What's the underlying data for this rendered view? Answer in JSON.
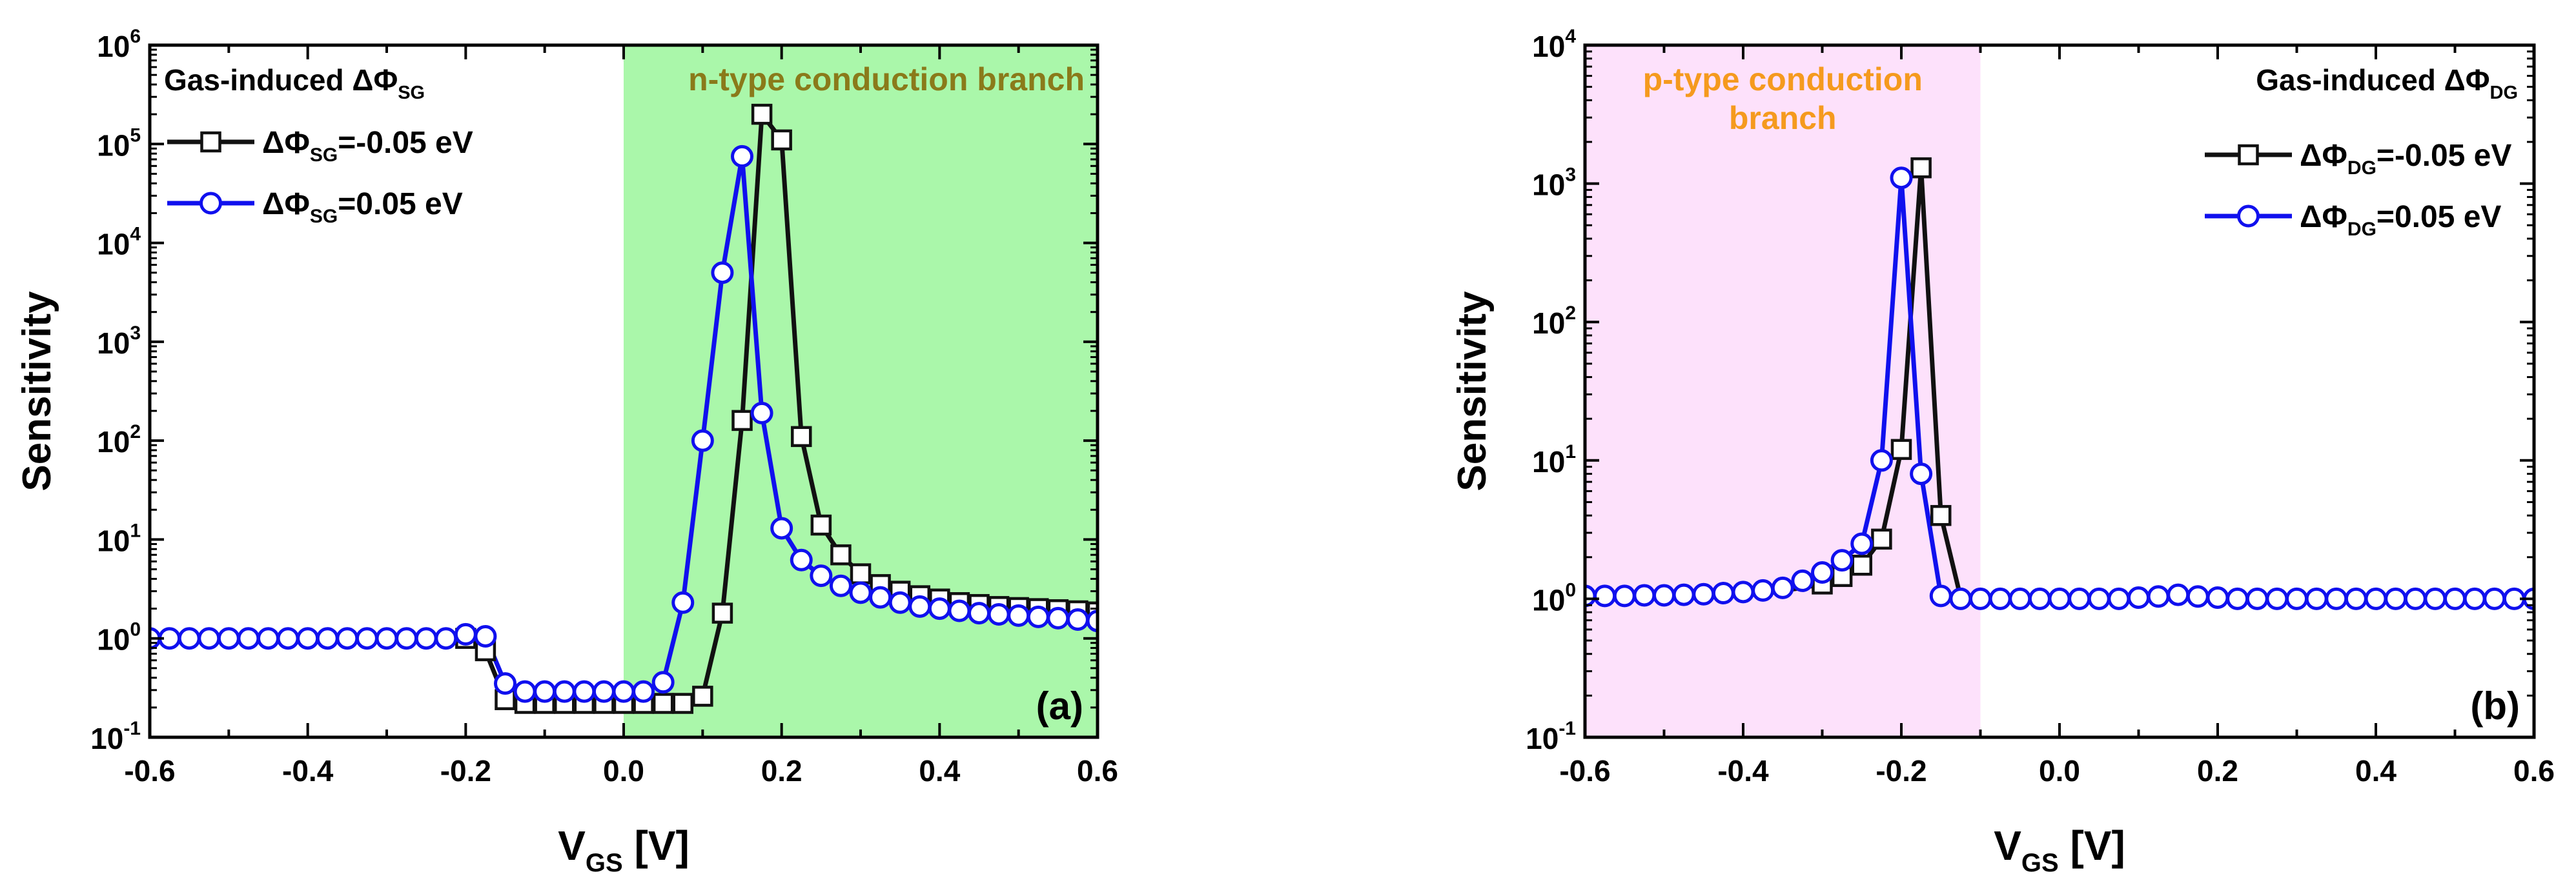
{
  "chart_data": [
    {
      "panel": "a",
      "type": "line",
      "yscale": "log",
      "xlabel": "V",
      "xlabel_sub": "GS",
      "xlabel_unit": "[V]",
      "ylabel": "Sensitivity",
      "xlim": [
        -0.6,
        0.6
      ],
      "xticks": [
        "-0.6",
        "-0.4",
        "-0.2",
        "0.0",
        "0.2",
        "0.4",
        "0.6"
      ],
      "ylim_exp": [
        -1,
        6
      ],
      "yticks": [
        {
          "base": "10",
          "exp": "-1"
        },
        {
          "base": "10",
          "exp": "0"
        },
        {
          "base": "10",
          "exp": "1"
        },
        {
          "base": "10",
          "exp": "2"
        },
        {
          "base": "10",
          "exp": "3"
        },
        {
          "base": "10",
          "exp": "4"
        },
        {
          "base": "10",
          "exp": "5"
        },
        {
          "base": "10",
          "exp": "6"
        }
      ],
      "region": {
        "x0": 0.0,
        "x1": 0.6,
        "color": "#aaf7aa",
        "label": "n-type conduction branch",
        "label_color": "#8a7a1a"
      },
      "panel_label": "(a)",
      "legend": {
        "title_main": "Gas-induced ΔΦ",
        "title_sub": "SG",
        "placement": "top-left"
      },
      "series": [
        {
          "name_main": "ΔΦ",
          "name_sub": "SG",
          "name_tail": "=-0.05 eV",
          "color": "#111111",
          "marker": "square",
          "x": [
            -0.6,
            -0.575,
            -0.55,
            -0.525,
            -0.5,
            -0.475,
            -0.45,
            -0.425,
            -0.4,
            -0.375,
            -0.35,
            -0.325,
            -0.3,
            -0.275,
            -0.25,
            -0.225,
            -0.2,
            -0.175,
            -0.15,
            -0.125,
            -0.1,
            -0.075,
            -0.05,
            -0.025,
            0.0,
            0.025,
            0.05,
            0.075,
            0.1,
            0.125,
            0.15,
            0.175,
            0.2,
            0.225,
            0.25,
            0.275,
            0.3,
            0.325,
            0.35,
            0.375,
            0.4,
            0.425,
            0.45,
            0.475,
            0.5,
            0.525,
            0.55,
            0.575,
            0.6
          ],
          "y": [
            1,
            1,
            1,
            1,
            1,
            1,
            1,
            1,
            1,
            1,
            1,
            1,
            1,
            1,
            1,
            1,
            1,
            0.75,
            0.24,
            0.22,
            0.22,
            0.22,
            0.22,
            0.22,
            0.22,
            0.22,
            0.22,
            0.22,
            0.26,
            1.8,
            160,
            200000,
            110000,
            110,
            14,
            7,
            4.5,
            3.5,
            3.0,
            2.7,
            2.5,
            2.3,
            2.2,
            2.1,
            2.05,
            2.0,
            1.95,
            1.9,
            1.85
          ],
          "markers": [
            16,
            17,
            18,
            19,
            20,
            21,
            22,
            23,
            24,
            25,
            26,
            27,
            28,
            29,
            30,
            31,
            32,
            33,
            34,
            35,
            36,
            37,
            38,
            39,
            40,
            41,
            42,
            43,
            44,
            45,
            46,
            47,
            48
          ]
        },
        {
          "name_main": "ΔΦ",
          "name_sub": "SG",
          "name_tail": "=0.05 eV",
          "color": "#1010ee",
          "marker": "circle",
          "x": [
            -0.6,
            -0.575,
            -0.55,
            -0.525,
            -0.5,
            -0.475,
            -0.45,
            -0.425,
            -0.4,
            -0.375,
            -0.35,
            -0.325,
            -0.3,
            -0.275,
            -0.25,
            -0.225,
            -0.2,
            -0.175,
            -0.15,
            -0.125,
            -0.1,
            -0.075,
            -0.05,
            -0.025,
            0.0,
            0.025,
            0.05,
            0.075,
            0.1,
            0.125,
            0.15,
            0.175,
            0.2,
            0.225,
            0.25,
            0.275,
            0.3,
            0.325,
            0.35,
            0.375,
            0.4,
            0.425,
            0.45,
            0.475,
            0.5,
            0.525,
            0.55,
            0.575,
            0.6
          ],
          "y": [
            1,
            1,
            1,
            1,
            1,
            1,
            1,
            1,
            1,
            1,
            1,
            1,
            1,
            1,
            1,
            1,
            1.1,
            1.05,
            0.35,
            0.29,
            0.29,
            0.29,
            0.29,
            0.29,
            0.29,
            0.29,
            0.36,
            2.3,
            100,
            5000,
            75000,
            190,
            13,
            6.2,
            4.3,
            3.4,
            2.9,
            2.6,
            2.3,
            2.1,
            2.0,
            1.9,
            1.8,
            1.75,
            1.7,
            1.65,
            1.6,
            1.55,
            1.5
          ],
          "markers": [
            0,
            1,
            2,
            3,
            4,
            5,
            6,
            7,
            8,
            9,
            10,
            11,
            12,
            13,
            14,
            15,
            16,
            17,
            18,
            19,
            20,
            21,
            22,
            23,
            24,
            25,
            26,
            27,
            28,
            29,
            30,
            31,
            32,
            33,
            34,
            35,
            36,
            37,
            38,
            39,
            40,
            41,
            42,
            43,
            44,
            45,
            46,
            47,
            48
          ]
        }
      ]
    },
    {
      "panel": "b",
      "type": "line",
      "yscale": "log",
      "xlabel": "V",
      "xlabel_sub": "GS",
      "xlabel_unit": "[V]",
      "ylabel": "Sensitivity",
      "xlim": [
        -0.6,
        0.6
      ],
      "xticks": [
        "-0.6",
        "-0.4",
        "-0.2",
        "0.0",
        "0.2",
        "0.4",
        "0.6"
      ],
      "ylim_exp": [
        -1,
        4
      ],
      "yticks": [
        {
          "base": "10",
          "exp": "-1"
        },
        {
          "base": "10",
          "exp": "0"
        },
        {
          "base": "10",
          "exp": "1"
        },
        {
          "base": "10",
          "exp": "2"
        },
        {
          "base": "10",
          "exp": "3"
        },
        {
          "base": "10",
          "exp": "4"
        }
      ],
      "region": {
        "x0": -0.6,
        "x1": -0.1,
        "color": "#fde1fb",
        "label": "p-type conduction branch",
        "label_lines": [
          "p-type conduction",
          "branch"
        ],
        "label_color": "#f59a1e"
      },
      "panel_label": "(b)",
      "legend": {
        "title_main": "Gas-induced ΔΦ",
        "title_sub": "DG",
        "placement": "top-right"
      },
      "series": [
        {
          "name_main": "ΔΦ",
          "name_sub": "DG",
          "name_tail": "=-0.05 eV",
          "color": "#111111",
          "marker": "square",
          "x": [
            -0.6,
            -0.575,
            -0.55,
            -0.525,
            -0.5,
            -0.475,
            -0.45,
            -0.425,
            -0.4,
            -0.375,
            -0.35,
            -0.325,
            -0.3,
            -0.275,
            -0.25,
            -0.225,
            -0.2,
            -0.175,
            -0.15,
            -0.125,
            -0.1,
            -0.075,
            -0.05,
            -0.025,
            0.0,
            0.025,
            0.05,
            0.075,
            0.1,
            0.125,
            0.15,
            0.175,
            0.2,
            0.225,
            0.25,
            0.275,
            0.3,
            0.325,
            0.35,
            0.375,
            0.4,
            0.425,
            0.45,
            0.475,
            0.5,
            0.525,
            0.55,
            0.575,
            0.6
          ],
          "y": [
            1.02,
            1.02,
            1.02,
            1.03,
            1.03,
            1.04,
            1.05,
            1.06,
            1.08,
            1.1,
            1.15,
            1.2,
            1.28,
            1.45,
            1.75,
            2.7,
            12,
            1300,
            4,
            1.02,
            1.02,
            1.02,
            1.02,
            1.02,
            1.02,
            1.02,
            1.02,
            1.02,
            1.02,
            1.02,
            1.02,
            1.02,
            1.02,
            1.02,
            1.02,
            1.02,
            1.02,
            1.02,
            1.02,
            1.02,
            1.02,
            1.02,
            1.02,
            1.02,
            1.02,
            1.02,
            1.02,
            1.02,
            1.02
          ],
          "markers": [
            12,
            13,
            14,
            15,
            16,
            17,
            18
          ]
        },
        {
          "name_main": "ΔΦ",
          "name_sub": "DG",
          "name_tail": "=0.05 eV",
          "color": "#1010ee",
          "marker": "circle",
          "x": [
            -0.6,
            -0.575,
            -0.55,
            -0.525,
            -0.5,
            -0.475,
            -0.45,
            -0.425,
            -0.4,
            -0.375,
            -0.35,
            -0.325,
            -0.3,
            -0.275,
            -0.25,
            -0.225,
            -0.2,
            -0.175,
            -0.15,
            -0.125,
            -0.1,
            -0.075,
            -0.05,
            -0.025,
            0.0,
            0.025,
            0.05,
            0.075,
            0.1,
            0.125,
            0.15,
            0.175,
            0.2,
            0.225,
            0.25,
            0.275,
            0.3,
            0.325,
            0.35,
            0.375,
            0.4,
            0.425,
            0.45,
            0.475,
            0.5,
            0.525,
            0.55,
            0.575,
            0.6
          ],
          "y": [
            1.05,
            1.05,
            1.05,
            1.06,
            1.06,
            1.07,
            1.08,
            1.1,
            1.12,
            1.15,
            1.2,
            1.35,
            1.55,
            1.9,
            2.5,
            10,
            1100,
            8,
            1.05,
            1.0,
            1.0,
            1.0,
            1.0,
            1.0,
            1.0,
            1.0,
            1.0,
            1.0,
            1.02,
            1.04,
            1.07,
            1.04,
            1.02,
            1.0,
            1.0,
            1.0,
            1.0,
            1.0,
            1.0,
            1.0,
            1.0,
            1.0,
            1.0,
            1.0,
            1.0,
            1.0,
            1.0,
            1.0,
            1.0
          ],
          "markers": [
            0,
            1,
            2,
            3,
            4,
            5,
            6,
            7,
            8,
            9,
            10,
            11,
            12,
            13,
            14,
            15,
            16,
            17,
            18,
            19,
            20,
            21,
            22,
            23,
            24,
            25,
            26,
            27,
            28,
            29,
            30,
            31,
            32,
            33,
            34,
            35,
            36,
            37,
            38,
            39,
            40,
            41,
            42,
            43,
            44,
            45,
            46,
            47,
            48
          ]
        }
      ]
    }
  ]
}
